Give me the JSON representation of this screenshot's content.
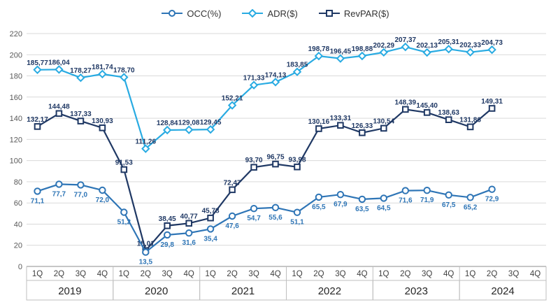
{
  "chart_data": {
    "type": "line",
    "title": "",
    "x_categories": [
      "1Q",
      "2Q",
      "3Q",
      "4Q",
      "1Q",
      "2Q",
      "3Q",
      "4Q",
      "1Q",
      "2Q",
      "3Q",
      "4Q",
      "1Q",
      "2Q",
      "3Q",
      "4Q",
      "1Q",
      "2Q",
      "3Q",
      "4Q",
      "1Q",
      "2Q",
      "3Q",
      "4Q"
    ],
    "years": [
      "2019",
      "2020",
      "2021",
      "2022",
      "2023",
      "2024"
    ],
    "quarters_per_year": 4,
    "ylim": [
      0,
      220
    ],
    "ytick_step": 20,
    "y_ticks": [
      0,
      20,
      40,
      60,
      80,
      100,
      120,
      140,
      160,
      180,
      200,
      220
    ],
    "grid": "horizontal",
    "legend_position": "top",
    "series": [
      {
        "key": "adr",
        "name": "ADR($)",
        "marker": "diamond",
        "color": "#29abe2",
        "label_color": "#1f3864",
        "label_position": "above",
        "values": [
          185.77,
          186.04,
          178.27,
          181.74,
          178.7,
          111.26,
          128.84,
          129.08,
          129.45,
          152.21,
          171.33,
          174.13,
          183.85,
          198.78,
          196.45,
          198.88,
          202.29,
          207.37,
          202.13,
          205.31,
          202.33,
          204.73
        ],
        "labels": [
          "185,77",
          "186,04",
          "178,27",
          "181,74",
          "178,70",
          "111,26",
          "128,84",
          "129,08",
          "129,45",
          "152,21",
          "171,33",
          "174,13",
          "183,85",
          "198,78",
          "196,45",
          "198,88",
          "202,29",
          "207,37",
          "202,13",
          "205,31",
          "202,33",
          "204,73"
        ]
      },
      {
        "key": "revpar",
        "name": "RevPAR($)",
        "marker": "square",
        "color": "#1f3864",
        "label_color": "#1f3864",
        "label_position": "above",
        "values": [
          132.17,
          144.48,
          137.33,
          130.93,
          91.53,
          15.01,
          38.45,
          40.77,
          45.78,
          72.47,
          93.7,
          96.75,
          93.98,
          130.16,
          133.31,
          126.33,
          130.54,
          148.39,
          145.4,
          138.63,
          131.86,
          149.31
        ],
        "labels": [
          "132,17",
          "144,48",
          "137,33",
          "130,93",
          "91,53",
          "15,01",
          "38,45",
          "40,77",
          "45,78",
          "72,47",
          "93,70",
          "96,75",
          "93,98",
          "130,16",
          "133,31",
          "126,33",
          "130,54",
          "148,39",
          "145,40",
          "138,63",
          "131,86",
          "149,31"
        ]
      },
      {
        "key": "occ",
        "name": "OCC(%)",
        "marker": "circle",
        "color": "#2e75b6",
        "label_color": "#2e75b6",
        "label_position": "below",
        "values": [
          71.1,
          77.7,
          77.0,
          72.0,
          51.2,
          13.5,
          29.8,
          31.6,
          35.4,
          47.6,
          54.7,
          55.6,
          51.1,
          65.5,
          67.9,
          63.5,
          64.5,
          71.6,
          71.9,
          67.5,
          65.2,
          72.9
        ],
        "labels": [
          "71,1",
          "77,7",
          "77,0",
          "72,0",
          "51,2",
          "13,5",
          "29,8",
          "31,6",
          "35,4",
          "47,6",
          "54,7",
          "55,6",
          "51,1",
          "65,5",
          "67,9",
          "63,5",
          "64,5",
          "71,6",
          "71,9",
          "67,5",
          "65,2",
          "72,9"
        ]
      }
    ],
    "legend_order": [
      "occ",
      "adr",
      "revpar"
    ]
  }
}
